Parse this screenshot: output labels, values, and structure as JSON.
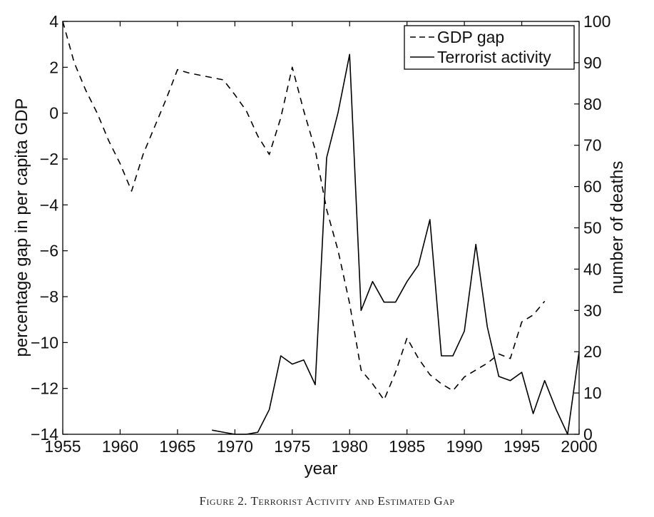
{
  "chart_data": {
    "type": "line",
    "caption": "Figure 2. Terrorist Activity and Estimated Gap",
    "xlabel": "year",
    "ylabel_left": "percentage gap in per capita GDP",
    "ylabel_right": "number of deaths",
    "xlim": [
      1955,
      2000
    ],
    "ylim_left": [
      -14,
      4
    ],
    "ylim_right": [
      0,
      100
    ],
    "x_ticks": [
      1955,
      1960,
      1965,
      1970,
      1975,
      1980,
      1985,
      1990,
      1995,
      2000
    ],
    "y_ticks_left": [
      4,
      2,
      0,
      -2,
      -4,
      -6,
      -8,
      -10,
      -12,
      -14
    ],
    "y_ticks_right": [
      100,
      90,
      80,
      70,
      60,
      50,
      40,
      30,
      20,
      10,
      0
    ],
    "legend_position": "top-right",
    "series": [
      {
        "name": "GDP gap",
        "style": "dashed",
        "axis": "left",
        "color": "#000000",
        "x": [
          1955,
          1956,
          1957,
          1958,
          1959,
          1960,
          1961,
          1962,
          1963,
          1964,
          1965,
          1966,
          1967,
          1968,
          1969,
          1970,
          1971,
          1972,
          1973,
          1974,
          1975,
          1976,
          1977,
          1978,
          1979,
          1980,
          1981,
          1982,
          1983,
          1984,
          1985,
          1986,
          1987,
          1988,
          1989,
          1990,
          1991,
          1992,
          1993,
          1994,
          1995,
          1996,
          1997
        ],
        "values": [
          4.0,
          2.2,
          1.0,
          0.0,
          -1.2,
          -2.2,
          -3.4,
          -1.8,
          -0.6,
          0.6,
          1.9,
          1.75,
          1.65,
          1.55,
          1.45,
          0.8,
          0.1,
          -1.0,
          -1.8,
          -0.2,
          2.0,
          0.1,
          -1.6,
          -4.2,
          -6.0,
          -8.3,
          -11.2,
          -11.8,
          -12.5,
          -11.3,
          -9.8,
          -10.7,
          -11.4,
          -11.8,
          -12.1,
          -11.5,
          -11.2,
          -10.9,
          -10.5,
          -10.7,
          -9.1,
          -8.8,
          -8.2
        ]
      },
      {
        "name": "Terrorist activity",
        "style": "solid",
        "axis": "right",
        "color": "#000000",
        "x": [
          1968,
          1969,
          1970,
          1971,
          1972,
          1973,
          1974,
          1975,
          1976,
          1977,
          1978,
          1979,
          1980,
          1981,
          1982,
          1983,
          1984,
          1985,
          1986,
          1987,
          1988,
          1989,
          1990,
          1991,
          1992,
          1993,
          1994,
          1995,
          1996,
          1997,
          1998,
          1999,
          2000
        ],
        "values": [
          1,
          0.5,
          0,
          0,
          0.5,
          6,
          19,
          17,
          18,
          12,
          67,
          78,
          92,
          30,
          37,
          32,
          32,
          37,
          41,
          52,
          19,
          19,
          25,
          46,
          26,
          14,
          13,
          15,
          5,
          13,
          6,
          0,
          20
        ]
      }
    ]
  }
}
